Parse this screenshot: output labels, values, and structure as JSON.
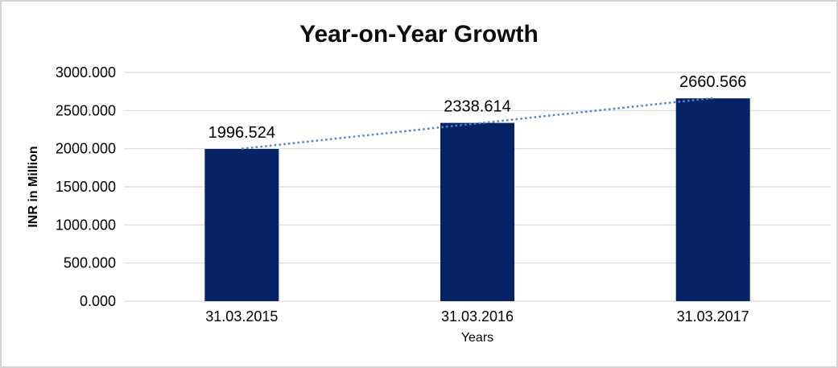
{
  "frame": {
    "background": "#ffffff",
    "border_color": "#d4d4d4"
  },
  "chart_data": {
    "type": "bar",
    "title": "Year-on-Year Growth",
    "xlabel": "Years",
    "ylabel": "INR in Million",
    "categories": [
      "31.03.2015",
      "31.03.2016",
      "31.03.2017"
    ],
    "values": [
      1996.524,
      2338.614,
      2660.566
    ],
    "value_labels": [
      "1996.524",
      "2338.614",
      "2660.566"
    ],
    "ylim": [
      0,
      3000
    ],
    "ytick_values": [
      0,
      500,
      1000,
      1500,
      2000,
      2500,
      3000
    ],
    "ytick_labels": [
      "0.000",
      "500.000",
      "1000.000",
      "1500.000",
      "2000.000",
      "2500.000",
      "3000.000"
    ],
    "grid": true,
    "legend": "none",
    "colors": {
      "bar": "#062465",
      "trendline": "#4e86c8",
      "gridline": "#d9d9d9",
      "text": "#000000",
      "title_text": "#0d0d0d"
    },
    "trendline": {
      "type": "linear",
      "style": "dotted"
    }
  }
}
